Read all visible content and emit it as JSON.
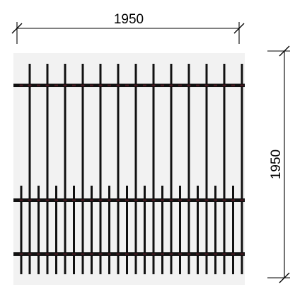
{
  "dimensions": {
    "width": {
      "value": "1950"
    },
    "height": {
      "value": "1950"
    }
  },
  "colors": {
    "background_panel": "#f2f2f2",
    "steel": "#111111",
    "dimension_line": "#000000",
    "weld_mark": "#7a1d2e"
  }
}
